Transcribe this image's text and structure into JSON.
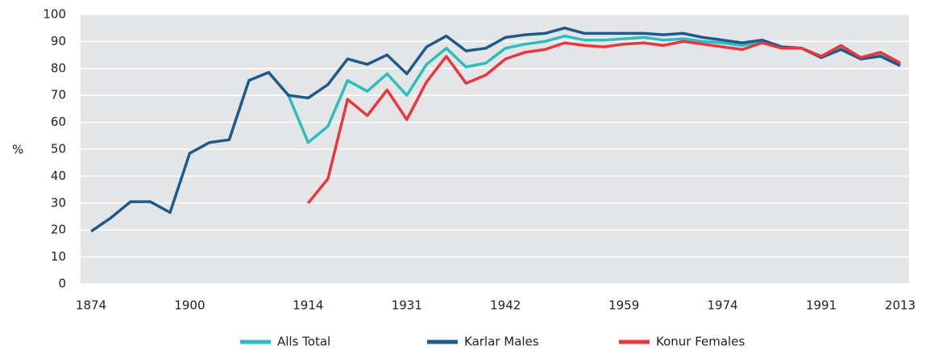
{
  "chart_data": {
    "type": "line",
    "categories": [
      "1874",
      null,
      null,
      null,
      null,
      "1900",
      null,
      null,
      null,
      null,
      null,
      "1914",
      null,
      null,
      null,
      null,
      "1931",
      null,
      null,
      null,
      null,
      "1942",
      null,
      null,
      null,
      null,
      null,
      "1959",
      null,
      null,
      null,
      null,
      "1974",
      null,
      null,
      null,
      null,
      "1991",
      null,
      null,
      null,
      "2013"
    ],
    "y_label": "%",
    "ylim": [
      0,
      100
    ],
    "yticks": [
      0,
      10,
      20,
      30,
      40,
      50,
      60,
      70,
      80,
      90,
      100
    ],
    "grid": true,
    "legend": "bottom",
    "series": [
      {
        "name": "Alls Total",
        "color": "#2dbdbd",
        "values": [
          null,
          null,
          null,
          null,
          null,
          null,
          null,
          null,
          null,
          null,
          70,
          52.5,
          58.5,
          75.5,
          71.5,
          78,
          70,
          81.5,
          87.5,
          80.5,
          82,
          87.5,
          89,
          90,
          92,
          90.5,
          90.5,
          91,
          91.5,
          90.5,
          91,
          90,
          89.5,
          88.5,
          90,
          87.5,
          87.5,
          84,
          87.5,
          83.5,
          85.5,
          81.5
        ]
      },
      {
        "name": "Karlar Males",
        "color": "#1f5a8c",
        "values": [
          19.5,
          24.5,
          30.5,
          30.5,
          26.5,
          48.5,
          52.5,
          53.5,
          75.5,
          78.5,
          70,
          69,
          74,
          83.5,
          81.5,
          85,
          78,
          88,
          92,
          86.5,
          87.5,
          91.5,
          92.5,
          93,
          95,
          93,
          93,
          93,
          93,
          92.5,
          93,
          91.5,
          90.5,
          89.5,
          90.5,
          88,
          87.5,
          84,
          87,
          83.5,
          84.5,
          81
        ]
      },
      {
        "name": "Konur Females",
        "color": "#e8383d",
        "values": [
          null,
          null,
          null,
          null,
          null,
          null,
          null,
          null,
          null,
          null,
          null,
          30,
          39,
          68.5,
          62.5,
          72,
          61,
          75,
          84.5,
          74.5,
          77.5,
          83.5,
          86,
          87,
          89.5,
          88.5,
          88,
          89,
          89.5,
          88.5,
          90,
          89,
          88,
          87,
          89.5,
          87.5,
          87.5,
          84.5,
          88.5,
          84,
          86,
          82
        ]
      }
    ]
  }
}
